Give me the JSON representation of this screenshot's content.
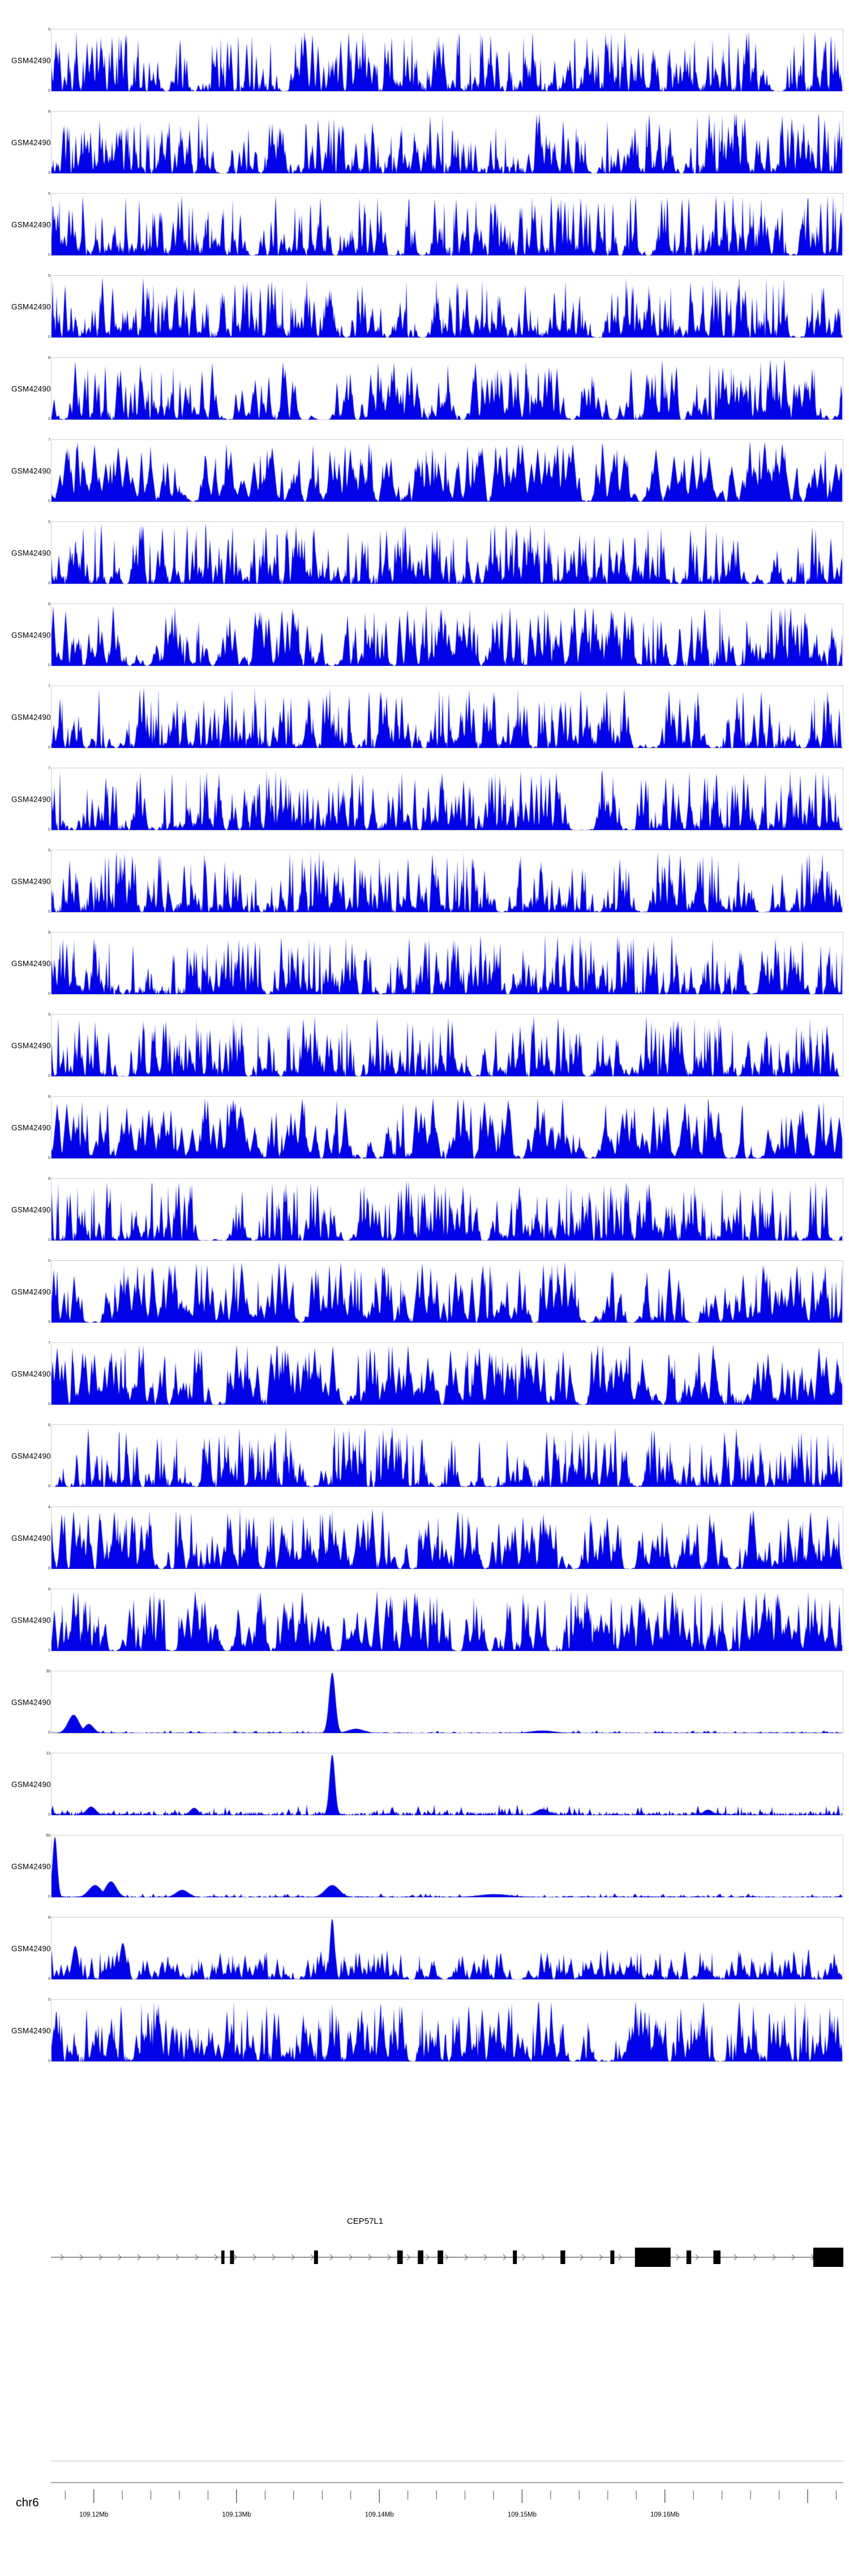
{
  "colors": {
    "signal": "#0202e8",
    "exon": "#000000",
    "gene_line": "#6e6e6e",
    "axis_line": "#4d4d4d",
    "separator": "#b8b8b8",
    "frame": "#cfcfcf",
    "text": "#000000"
  },
  "chart_data": {
    "type": "area",
    "description": "Genome browser coverage tracks over chr6 with CEP57L1 gene model and genomic axis",
    "x_axis": {
      "chromosome": "chr6",
      "unit": "Mb",
      "start_mb": 109.117,
      "end_mb": 109.1725,
      "minor_tick_step_mb": 0.002,
      "major_ticks": [
        {
          "value_mb": 109.12,
          "label": "109.12Mb"
        },
        {
          "value_mb": 109.13,
          "label": "109.13Mb"
        },
        {
          "value_mb": 109.14,
          "label": "109.14Mb"
        },
        {
          "value_mb": 109.15,
          "label": "109.15Mb"
        },
        {
          "value_mb": 109.16,
          "label": "109.16Mb"
        }
      ]
    },
    "tracks": [
      {
        "label": "GSM4249087",
        "ymin": 0,
        "ymax": 5,
        "type": "dense",
        "seed": 11
      },
      {
        "label": "GSM4249086",
        "ymin": 0,
        "ymax": 8,
        "type": "dense",
        "seed": 12
      },
      {
        "label": "GSM4249085",
        "ymin": 0,
        "ymax": 5,
        "type": "dense",
        "seed": 13
      },
      {
        "label": "GSM4249084",
        "ymin": 0,
        "ymax": 5,
        "type": "dense",
        "seed": 14
      },
      {
        "label": "GSM4249083",
        "ymin": 0,
        "ymax": 8,
        "type": "dense",
        "seed": 15,
        "wmul": 1.3
      },
      {
        "label": "GSM4249082",
        "ymin": 0,
        "ymax": 7,
        "type": "dense",
        "seed": 16,
        "wmul": 2.0
      },
      {
        "label": "GSM4249081",
        "ymin": 0,
        "ymax": 5,
        "type": "dense",
        "seed": 17
      },
      {
        "label": "GSM4249080",
        "ymin": 0,
        "ymax": 8,
        "type": "dense",
        "seed": 18,
        "wmul": 1.3
      },
      {
        "label": "GSM4249079",
        "ymin": 0,
        "ymax": 7,
        "type": "dense",
        "seed": 19
      },
      {
        "label": "GSM4249078",
        "ymin": 0,
        "ymax": 7,
        "type": "dense",
        "seed": 20
      },
      {
        "label": "GSM4249077",
        "ymin": 0,
        "ymax": 5,
        "type": "dense",
        "seed": 21
      },
      {
        "label": "GSM4249076",
        "ymin": 0,
        "ymax": 8,
        "type": "dense",
        "seed": 22
      },
      {
        "label": "GSM4249075",
        "ymin": 0,
        "ymax": 5,
        "type": "dense",
        "seed": 23
      },
      {
        "label": "GSM4249074",
        "ymin": 0,
        "ymax": 8,
        "type": "dense",
        "seed": 24,
        "wmul": 1.8
      },
      {
        "label": "GSM4249073",
        "ymin": 0,
        "ymax": 8,
        "type": "dense",
        "seed": 25
      },
      {
        "label": "GSM4249072",
        "ymin": 0,
        "ymax": 5,
        "type": "dense",
        "seed": 26,
        "wmul": 1.5
      },
      {
        "label": "GSM4249071",
        "ymin": 0,
        "ymax": 7,
        "type": "dense",
        "seed": 27,
        "wmul": 1.6
      },
      {
        "label": "GSM4249070",
        "ymin": 0,
        "ymax": 6,
        "type": "dense",
        "seed": 28
      },
      {
        "label": "GSM4249069",
        "ymin": 0,
        "ymax": 4,
        "type": "dense",
        "seed": 29,
        "wmul": 1.5
      },
      {
        "label": "GSM4249068",
        "ymin": 0,
        "ymax": 8,
        "type": "dense",
        "seed": 30,
        "wmul": 1.6
      },
      {
        "label": "GSM4249097",
        "ymin": 0,
        "ymax": 30,
        "type": "sparse",
        "seed": 31,
        "baseline": 0.02,
        "peaks": [
          {
            "x": 0.028,
            "h": 0.3,
            "w": 0.007
          },
          {
            "x": 0.047,
            "h": 0.15,
            "w": 0.006
          },
          {
            "x": 0.355,
            "h": 1.0,
            "w": 0.004
          },
          {
            "x": 0.385,
            "h": 0.07,
            "w": 0.01
          },
          {
            "x": 0.62,
            "h": 0.04,
            "w": 0.015
          }
        ]
      },
      {
        "label": "GSM4249096",
        "ymin": 0,
        "ymax": 13,
        "type": "sparse",
        "seed": 32,
        "baseline": 0.08,
        "peaks": [
          {
            "x": 0.355,
            "h": 1.0,
            "w": 0.0035
          },
          {
            "x": 0.05,
            "h": 0.14,
            "w": 0.006
          },
          {
            "x": 0.18,
            "h": 0.12,
            "w": 0.005
          },
          {
            "x": 0.62,
            "h": 0.1,
            "w": 0.008
          },
          {
            "x": 0.83,
            "h": 0.09,
            "w": 0.006
          }
        ]
      },
      {
        "label": "GSM4249095",
        "ymin": 0,
        "ymax": 60,
        "type": "sparse",
        "seed": 33,
        "baseline": 0.03,
        "peaks": [
          {
            "x": 0.004,
            "h": 1.0,
            "w": 0.003
          },
          {
            "x": 0.055,
            "h": 0.2,
            "w": 0.008
          },
          {
            "x": 0.075,
            "h": 0.26,
            "w": 0.007
          },
          {
            "x": 0.165,
            "h": 0.12,
            "w": 0.008
          },
          {
            "x": 0.355,
            "h": 0.2,
            "w": 0.009
          },
          {
            "x": 0.56,
            "h": 0.05,
            "w": 0.02
          }
        ]
      },
      {
        "label": "GSM4249094",
        "ymin": 0,
        "ymax": 8,
        "type": "dense",
        "seed": 34,
        "scale": 0.5,
        "wmul": 1.2,
        "peaks": [
          {
            "x": 0.355,
            "h": 1.0,
            "w": 0.003
          },
          {
            "x": 0.03,
            "h": 0.55,
            "w": 0.004
          },
          {
            "x": 0.09,
            "h": 0.6,
            "w": 0.004
          }
        ]
      },
      {
        "label": "GSM4249093",
        "ymin": 0,
        "ymax": 5,
        "type": "dense",
        "seed": 35,
        "wmul": 1.3
      }
    ],
    "gene_track": {
      "name": "CEP57L1",
      "strand": "+",
      "exons": [
        {
          "x": 0.215,
          "w": 0.004
        },
        {
          "x": 0.226,
          "w": 0.005
        },
        {
          "x": 0.332,
          "w": 0.005
        },
        {
          "x": 0.437,
          "w": 0.007
        },
        {
          "x": 0.463,
          "w": 0.007
        },
        {
          "x": 0.488,
          "w": 0.007
        },
        {
          "x": 0.583,
          "w": 0.005
        },
        {
          "x": 0.643,
          "w": 0.006
        },
        {
          "x": 0.706,
          "w": 0.005
        },
        {
          "x": 0.737,
          "w": 0.045,
          "tall": true
        },
        {
          "x": 0.802,
          "w": 0.006
        },
        {
          "x": 0.836,
          "w": 0.009
        },
        {
          "x": 0.962,
          "w": 0.038,
          "tall": true
        }
      ]
    }
  }
}
